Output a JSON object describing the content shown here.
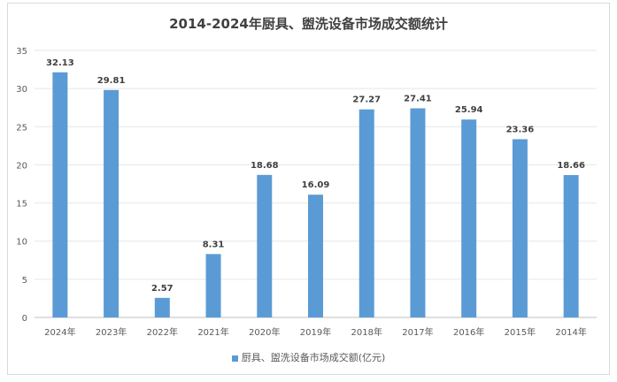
{
  "chart_data": {
    "type": "bar",
    "title": "2014-2024年厨具、盥洗设备市场成交额统计",
    "categories": [
      "2024年",
      "2023年",
      "2022年",
      "2021年",
      "2020年",
      "2019年",
      "2018年",
      "2017年",
      "2016年",
      "2015年",
      "2014年"
    ],
    "series": [
      {
        "name": "厨具、盥洗设备市场成交额(亿元)",
        "values": [
          32.13,
          29.81,
          2.57,
          8.31,
          18.68,
          16.09,
          27.27,
          27.41,
          25.94,
          23.36,
          18.66
        ]
      }
    ],
    "ylim": [
      0,
      35
    ],
    "yticks": [
      0,
      5,
      10,
      15,
      20,
      25,
      30,
      35
    ],
    "grid": true,
    "legend": "bottom",
    "color": "#5b9bd5"
  }
}
